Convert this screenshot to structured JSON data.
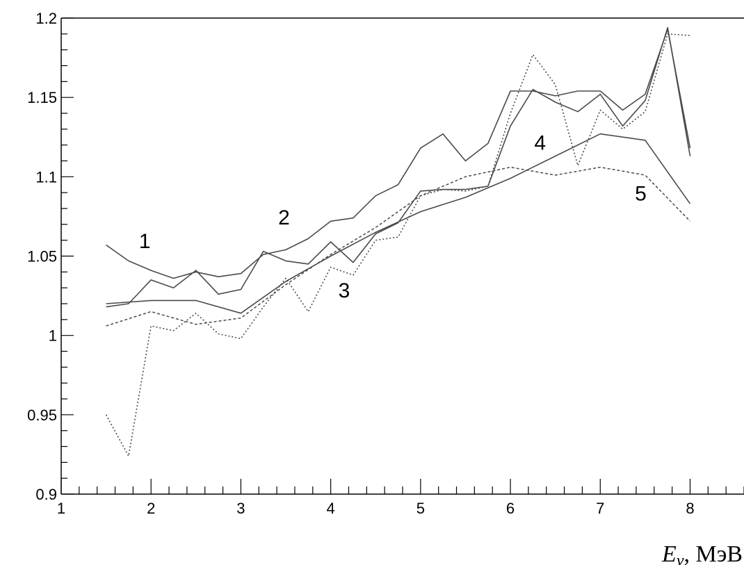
{
  "chart_data": {
    "type": "line",
    "title": "",
    "xlabel": {
      "symbol": "E",
      "subscript": "ν",
      "unit": ", МэВ"
    },
    "ylabel": "",
    "xlim": [
      1,
      8.6
    ],
    "ylim": [
      0.9,
      1.2
    ],
    "x_ticks": [
      1,
      2,
      3,
      4,
      5,
      6,
      7,
      8
    ],
    "x_tick_labels": [
      "1",
      "2",
      "3",
      "4",
      "5",
      "6",
      "7",
      "8"
    ],
    "y_ticks": [
      0.9,
      0.95,
      1.0,
      1.05,
      1.1,
      1.15,
      1.2
    ],
    "y_tick_labels": [
      "0.9",
      "0.95",
      "1",
      "1.05",
      "1.1",
      "1.15",
      "1.2"
    ],
    "grid": false,
    "legend": "none",
    "annotations": [
      {
        "text": "1",
        "x": 1.93,
        "y": 1.055
      },
      {
        "text": "2",
        "x": 3.48,
        "y": 1.07
      },
      {
        "text": "3",
        "x": 4.15,
        "y": 1.024
      },
      {
        "text": "4",
        "x": 6.33,
        "y": 1.117
      },
      {
        "text": "5",
        "x": 7.45,
        "y": 1.085
      }
    ],
    "series": [
      {
        "style": "solid",
        "x": [
          1.5,
          1.75,
          2.0,
          2.25,
          2.5,
          2.75,
          3.0,
          3.25,
          3.5,
          3.75,
          4.0,
          4.25,
          4.5,
          4.75,
          5.0,
          5.25,
          5.5,
          5.75,
          6.0,
          6.25,
          6.5,
          6.75,
          7.0,
          7.25,
          7.5,
          7.75,
          8.0
        ],
        "y": [
          1.057,
          1.047,
          1.041,
          1.036,
          1.04,
          1.037,
          1.039,
          1.051,
          1.054,
          1.061,
          1.072,
          1.074,
          1.088,
          1.095,
          1.118,
          1.127,
          1.11,
          1.121,
          1.154,
          1.154,
          1.151,
          1.154,
          1.154,
          1.142,
          1.152,
          1.193,
          1.118
        ]
      },
      {
        "style": "solid",
        "x": [
          1.5,
          1.75,
          2.0,
          2.25,
          2.5,
          2.75,
          3.0,
          3.25,
          3.5,
          3.75,
          4.0,
          4.25,
          4.5,
          4.75,
          5.0,
          5.25,
          5.5,
          5.75,
          6.0,
          6.25,
          6.5,
          6.75,
          7.0,
          7.25,
          7.5,
          7.75,
          8.0
        ],
        "y": [
          1.018,
          1.02,
          1.035,
          1.03,
          1.041,
          1.026,
          1.029,
          1.053,
          1.047,
          1.045,
          1.059,
          1.046,
          1.064,
          1.071,
          1.091,
          1.092,
          1.092,
          1.094,
          1.132,
          1.155,
          1.147,
          1.141,
          1.152,
          1.132,
          1.148,
          1.194,
          1.113
        ]
      },
      {
        "style": "dotted",
        "x": [
          1.5,
          1.75,
          2.0,
          2.25,
          2.5,
          2.75,
          3.0,
          3.25,
          3.5,
          3.75,
          4.0,
          4.25,
          4.5,
          4.75,
          5.0,
          5.25,
          5.5,
          5.75,
          6.0,
          6.25,
          6.5,
          6.75,
          7.0,
          7.25,
          7.5,
          7.75,
          8.0
        ],
        "y": [
          0.95,
          0.924,
          1.006,
          1.003,
          1.014,
          1.001,
          0.998,
          1.018,
          1.036,
          1.015,
          1.043,
          1.038,
          1.06,
          1.062,
          1.088,
          1.092,
          1.091,
          1.094,
          1.14,
          1.177,
          1.158,
          1.107,
          1.142,
          1.13,
          1.141,
          1.19,
          1.189
        ]
      },
      {
        "style": "solid",
        "x": [
          1.5,
          2.0,
          2.5,
          3.0,
          3.5,
          4.0,
          4.5,
          5.0,
          5.5,
          6.0,
          6.5,
          7.0,
          7.5,
          8.0
        ],
        "y": [
          1.02,
          1.022,
          1.022,
          1.014,
          1.034,
          1.05,
          1.065,
          1.078,
          1.087,
          1.099,
          1.113,
          1.127,
          1.123,
          1.083
        ]
      },
      {
        "style": "dashed",
        "x": [
          1.5,
          2.0,
          2.5,
          3.0,
          3.5,
          4.0,
          4.5,
          5.0,
          5.5,
          6.0,
          6.5,
          7.0,
          7.5,
          8.0
        ],
        "y": [
          1.006,
          1.015,
          1.007,
          1.011,
          1.032,
          1.051,
          1.068,
          1.088,
          1.1,
          1.106,
          1.101,
          1.106,
          1.101,
          1.072
        ]
      }
    ]
  }
}
